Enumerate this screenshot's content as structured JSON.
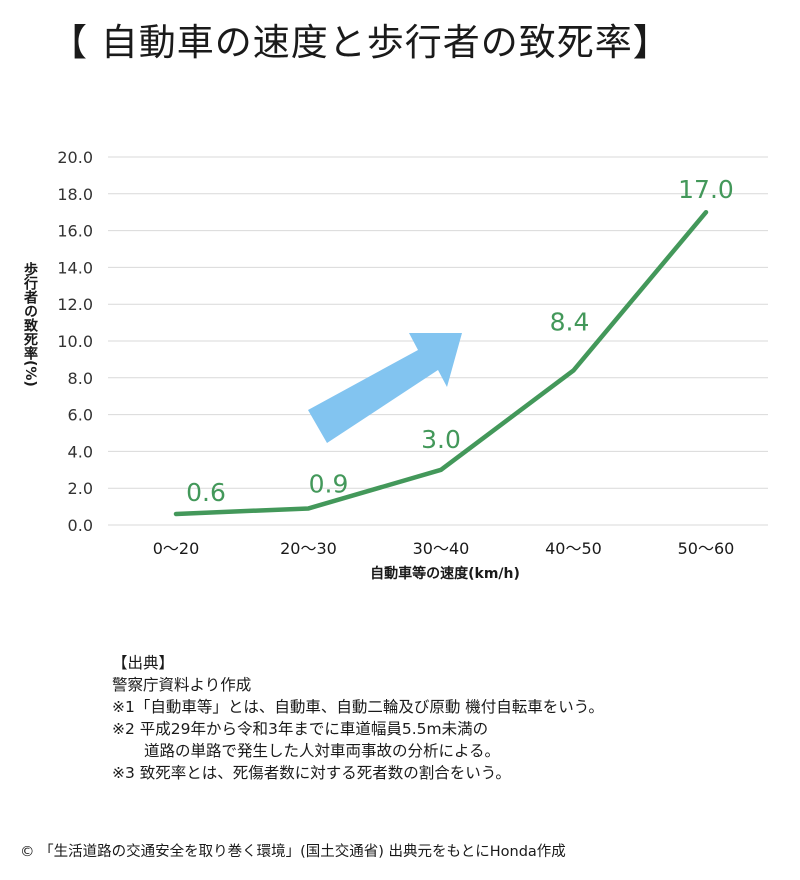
{
  "title": "【 自動車の速度と歩行者の致死率】",
  "chart_data": {
    "type": "line",
    "categories": [
      "0〜20",
      "20〜30",
      "30〜40",
      "40〜50",
      "50〜60"
    ],
    "series": [
      {
        "values": [
          0.6,
          0.9,
          3.0,
          8.4,
          17.0
        ],
        "color": "#43985a"
      }
    ],
    "data_labels": [
      "0.6",
      "0.9",
      "3.0",
      "8.4",
      "17.0"
    ],
    "xlabel": "自動車等の速度(km/h)",
    "ylabel": "歩行者の致死率(%)",
    "ylim": [
      0,
      20
    ],
    "yticks": [
      "0.0",
      "2.0",
      "4.0",
      "6.0",
      "8.0",
      "10.0",
      "12.0",
      "14.0",
      "16.0",
      "18.0",
      "20.0"
    ],
    "grid": true,
    "annotation": "arrow-up-right",
    "annotation_color": "#82c4f0"
  },
  "notes": {
    "heading": "【出典】",
    "source": "警察庁資料より作成",
    "note1": "※1「自動車等」とは、自動車、自動二輪及び原動 機付自転車をいう。",
    "note2_line1": "※2 平成29年から令和3年までに車道幅員5.5m未満の",
    "note2_line2": "道路の単路で発生した人対車両事故の分析による。",
    "note3": "※3 致死率とは、死傷者数に対する死者数の割合をいう。"
  },
  "credit": "© 「生活道路の交通安全を取り巻く環境」(国土交通省) 出典元をもとにHonda作成"
}
